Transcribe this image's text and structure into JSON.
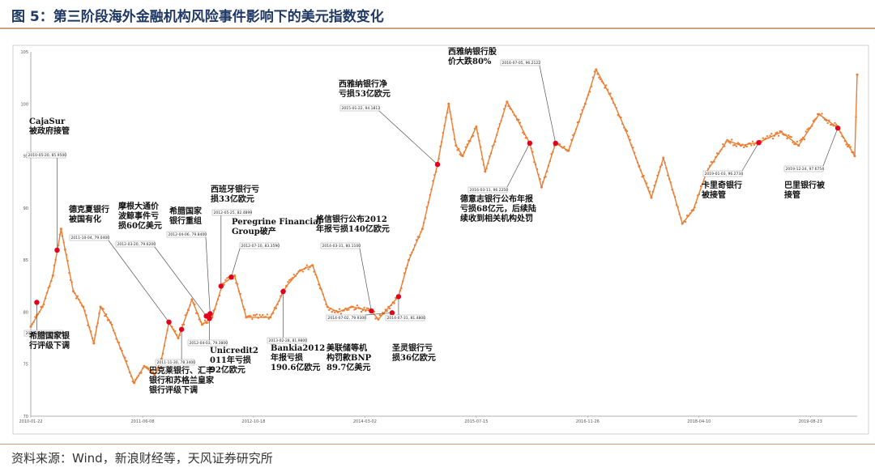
{
  "figure_title": "图 5：第三阶段海外金融机构风险事件影响下的美元指数变化",
  "source": "资料来源：Wind，新浪财经等，天风证券研究所",
  "colors": {
    "series": "#ed7d31",
    "event": "#e3001b",
    "title": "#1f3864",
    "rule": "#c8a27a"
  },
  "chart_data": {
    "type": "line",
    "title": "",
    "xlabel": "",
    "ylabel": "",
    "ylim": [
      70,
      105
    ],
    "y_ticks": [
      70,
      75,
      80,
      85,
      90,
      95,
      100,
      105
    ],
    "x_range": [
      "2010-01-22",
      "2020-03-20"
    ],
    "x_ticks": [
      "2010-01-22",
      "2011-06-08",
      "2012-10-18",
      "2014-03-02",
      "2015-07-15",
      "2016-11-26",
      "2018-04-10",
      "2019-08-23"
    ],
    "grid": false,
    "series": [
      {
        "points": [
          [
            "2010-01-22",
            78.6
          ],
          [
            "2010-03-15",
            80.5
          ],
          [
            "2010-05-01",
            83.5
          ],
          [
            "2010-06-07",
            88.0
          ],
          [
            "2010-06-25",
            86.0
          ],
          [
            "2010-08-01",
            82.0
          ],
          [
            "2010-09-15",
            80.5
          ],
          [
            "2010-11-01",
            77.0
          ],
          [
            "2010-12-01",
            80.5
          ],
          [
            "2011-01-15",
            79.0
          ],
          [
            "2011-03-01",
            76.5
          ],
          [
            "2011-05-01",
            73.2
          ],
          [
            "2011-06-15",
            74.8
          ],
          [
            "2011-08-01",
            74.0
          ],
          [
            "2011-09-01",
            75.5
          ],
          [
            "2011-10-04",
            79.0
          ],
          [
            "2011-11-15",
            77.5
          ],
          [
            "2011-12-30",
            80.2
          ],
          [
            "2012-01-15",
            81.2
          ],
          [
            "2012-03-01",
            78.8
          ],
          [
            "2012-04-15",
            79.5
          ],
          [
            "2012-06-01",
            82.7
          ],
          [
            "2012-07-25",
            83.5
          ],
          [
            "2012-09-15",
            79.5
          ],
          [
            "2013-01-01",
            79.5
          ],
          [
            "2013-03-15",
            82.5
          ],
          [
            "2013-05-15",
            84.0
          ],
          [
            "2013-07-10",
            84.5
          ],
          [
            "2013-09-15",
            80.5
          ],
          [
            "2013-11-01",
            80.0
          ],
          [
            "2014-01-01",
            80.5
          ],
          [
            "2014-03-31",
            80.1
          ],
          [
            "2014-05-01",
            79.3
          ],
          [
            "2014-07-31",
            81.5
          ],
          [
            "2014-09-15",
            85.0
          ],
          [
            "2014-11-15",
            88.0
          ],
          [
            "2015-01-22",
            94.2
          ],
          [
            "2015-03-13",
            100.0
          ],
          [
            "2015-04-15",
            96.0
          ],
          [
            "2015-05-15",
            95.0
          ],
          [
            "2015-07-15",
            97.8
          ],
          [
            "2015-08-24",
            93.5
          ],
          [
            "2015-11-30",
            100.2
          ],
          [
            "2016-01-15",
            98.5
          ],
          [
            "2016-03-11",
            96.2
          ],
          [
            "2016-05-03",
            92.0
          ],
          [
            "2016-07-05",
            96.2
          ],
          [
            "2016-09-01",
            95.5
          ],
          [
            "2016-11-15",
            100.0
          ],
          [
            "2017-01-03",
            103.3
          ],
          [
            "2017-03-15",
            100.5
          ],
          [
            "2017-05-15",
            97.5
          ],
          [
            "2017-07-15",
            94.0
          ],
          [
            "2017-09-08",
            91.0
          ],
          [
            "2017-11-01",
            94.8
          ],
          [
            "2018-01-25",
            88.5
          ],
          [
            "2018-03-15",
            89.8
          ],
          [
            "2018-05-15",
            93.5
          ],
          [
            "2018-08-15",
            96.5
          ],
          [
            "2018-10-15",
            96.0
          ],
          [
            "2019-01-03",
            96.3
          ],
          [
            "2019-04-15",
            97.3
          ],
          [
            "2019-07-01",
            96.0
          ],
          [
            "2019-10-01",
            99.0
          ],
          [
            "2019-12-24",
            97.7
          ],
          [
            "2020-03-09",
            95.0
          ],
          [
            "2020-03-20",
            102.8
          ]
        ]
      }
    ],
    "events": [
      {
        "date": "2010-02-18",
        "value": 80.9299,
        "tag": "2010-02-18, 80.9299",
        "label": [
          "希腊国家银",
          "行评级下调"
        ]
      },
      {
        "date": "2010-05-20",
        "value": 85.95,
        "tag": "2010-05-20, 85.9500",
        "label": [
          "CajaSur",
          "被政府接管"
        ]
      },
      {
        "date": "2011-10-04",
        "value": 79.04,
        "tag": "2011-10-04, 79.0400",
        "label": [
          "德克夏银行",
          "被国有化"
        ]
      },
      {
        "date": "2011-11-30",
        "value": 78.34,
        "tag": "2011-11-30, 78.3400",
        "label": [
          "巴克莱银行、汇丰",
          "银行和苏格兰皇家",
          "银行评级下调"
        ]
      },
      {
        "date": "2012-03-20",
        "value": 79.62,
        "tag": "2012-03-20, 79.6200",
        "label": [
          "摩根大通价",
          "波鲸事件亏",
          "损60亿美元"
        ]
      },
      {
        "date": "2012-04-03",
        "value": 79.38,
        "tag": "2012-04-03, 79.3800",
        "label": [
          "Unicredit2",
          "011年亏损",
          "92亿欧元"
        ]
      },
      {
        "date": "2012-04-06",
        "value": 79.84,
        "tag": "2012-04-06, 79.8400",
        "label": [
          "希腊国家",
          "银行重组"
        ]
      },
      {
        "date": "2012-05-25",
        "value": 82.4899,
        "tag": "2012-05-25, 82.4899",
        "label": [
          "西班牙银行亏",
          "损33亿欧元"
        ]
      },
      {
        "date": "2012-07-10",
        "value": 83.359,
        "tag": "2012-07-10, 83.3590",
        "label": [
          "Peregrine Financial",
          "Group破产"
        ]
      },
      {
        "date": "2013-02-28",
        "value": 81.98,
        "tag": "2013-02-28, 81.9800",
        "label": [
          "Bankia2012",
          "年报亏损",
          "190.6亿欧元"
        ]
      },
      {
        "date": "2014-03-31",
        "value": 80.11,
        "tag": "2014-03-31, 80.1100",
        "label": [
          "格信银行公布2012",
          "年报亏损140亿欧元"
        ]
      },
      {
        "date": "2014-07-02",
        "value": 79.93,
        "tag": "2014-07-02, 79.9300",
        "label": [
          "美联储等机",
          "构罚款BNP",
          "89.7亿美元"
        ]
      },
      {
        "date": "2014-07-31",
        "value": 81.48,
        "tag": "2014-07-31, 81.4800",
        "label": [
          "圣灵银行亏",
          "损36亿欧元"
        ]
      },
      {
        "date": "2015-01-22",
        "value": 94.1813,
        "tag": "2015-01-22, 94.1813",
        "label": [
          "西雅纳银行净",
          "亏损53亿欧元"
        ]
      },
      {
        "date": "2016-03-11",
        "value": 96.225,
        "tag": "2016-03-11, 96.2250",
        "label": [
          "德意志银行公布年报",
          "亏损68亿元，后续陆",
          "续收到相关机构处罚"
        ]
      },
      {
        "date": "2016-07-05",
        "value": 96.2122,
        "tag": "2016-07-05, 96.2122",
        "label": [
          "西雅纳银行股",
          "价大跌80%"
        ]
      },
      {
        "date": "2019-01-03",
        "value": 96.2734,
        "tag": "2019-01-03, 96.2734",
        "label": [
          "卡里奇银行",
          "被接管"
        ]
      },
      {
        "date": "2019-12-24",
        "value": 97.6754,
        "tag": "2019-12-24, 97.6754",
        "label": [
          "巴里银行被",
          "接管"
        ]
      }
    ]
  }
}
